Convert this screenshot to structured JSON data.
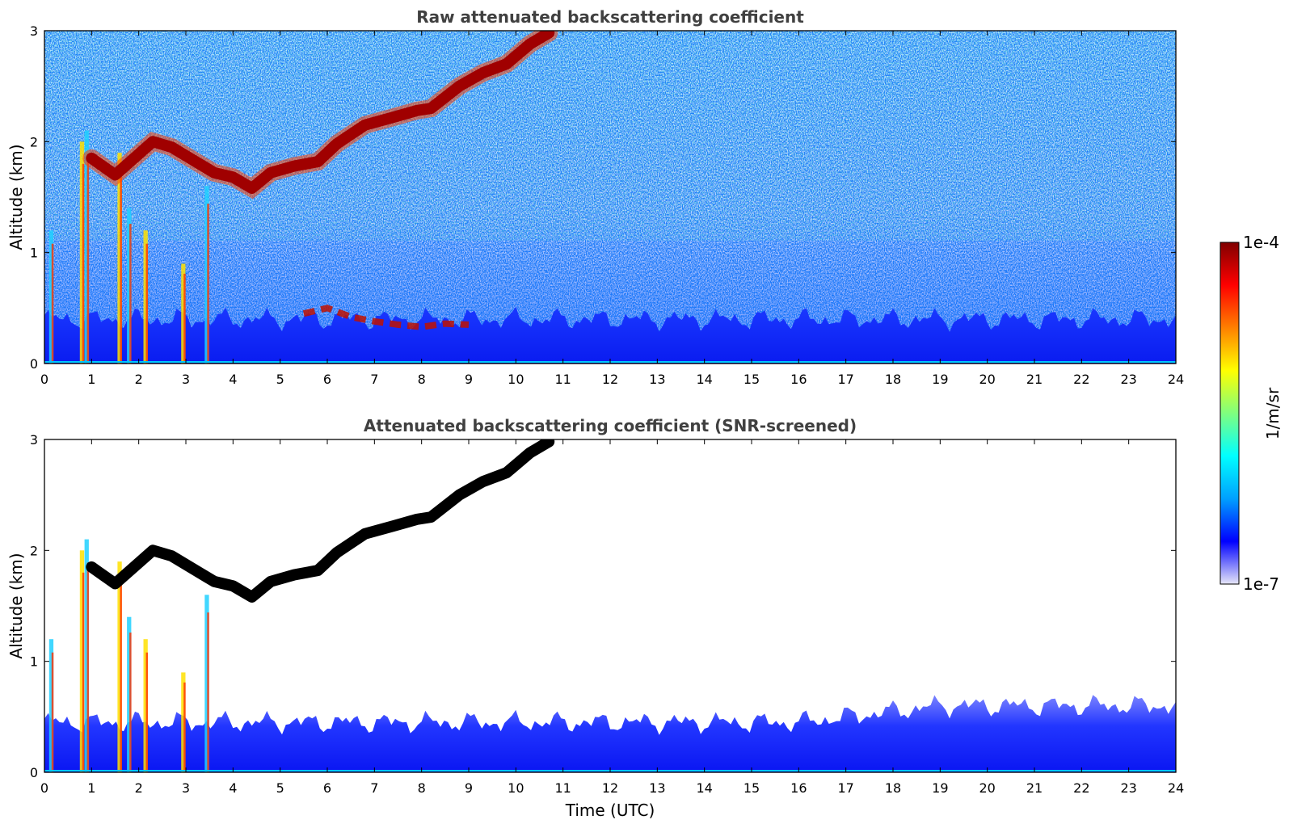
{
  "chart_data": [
    {
      "type": "heatmap",
      "title": "Raw attenuated backscattering coefficient",
      "xlabel": "",
      "ylabel": "Altitude (km)",
      "xlim": [
        0,
        24
      ],
      "ylim": [
        0,
        3
      ],
      "x_ticks": [
        "0",
        "1",
        "2",
        "3",
        "4",
        "5",
        "6",
        "7",
        "8",
        "9",
        "10",
        "11",
        "12",
        "13",
        "14",
        "15",
        "16",
        "17",
        "18",
        "19",
        "20",
        "21",
        "22",
        "23",
        "24"
      ],
      "y_ticks": [
        "0",
        "1",
        "2",
        "3"
      ],
      "features": {
        "boundary_layer_top_km": 0.4,
        "cloud_layer": {
          "x": [
            1.0,
            1.5,
            2.3,
            2.7,
            3.6,
            4.0,
            4.4,
            4.8,
            5.3,
            5.8,
            6.2,
            6.8,
            7.4,
            7.9,
            8.2,
            8.8,
            9.3,
            9.8,
            10.3,
            10.7
          ],
          "y": [
            1.85,
            1.7,
            2.0,
            1.95,
            1.72,
            1.68,
            1.58,
            1.72,
            1.78,
            1.82,
            1.98,
            2.15,
            2.22,
            2.28,
            2.3,
            2.5,
            2.62,
            2.7,
            2.88,
            2.98
          ]
        },
        "aerosol_layer": {
          "x": [
            5.5,
            6.0,
            6.5,
            7.0,
            7.5,
            8.0,
            8.5,
            9.0
          ],
          "y": [
            0.45,
            0.5,
            0.42,
            0.38,
            0.35,
            0.33,
            0.36,
            0.35
          ]
        }
      }
    },
    {
      "type": "heatmap",
      "title": "Attenuated backscattering coefficient (SNR-screened)",
      "xlabel": "Time (UTC)",
      "ylabel": "Altitude (km)",
      "xlim": [
        0,
        24
      ],
      "ylim": [
        0,
        3
      ],
      "x_ticks": [
        "0",
        "1",
        "2",
        "3",
        "4",
        "5",
        "6",
        "7",
        "8",
        "9",
        "10",
        "11",
        "12",
        "13",
        "14",
        "15",
        "16",
        "17",
        "18",
        "19",
        "20",
        "21",
        "22",
        "23",
        "24"
      ],
      "y_ticks": [
        "0",
        "1",
        "2",
        "3"
      ],
      "features": {
        "boundary_layer_top_km": 0.45,
        "cloud_layer": {
          "x": [
            1.0,
            1.5,
            2.3,
            2.7,
            3.6,
            4.0,
            4.4,
            4.8,
            5.3,
            5.8,
            6.2,
            6.8,
            7.4,
            7.9,
            8.2,
            8.8,
            9.3,
            9.8,
            10.3,
            10.7
          ],
          "y": [
            1.85,
            1.7,
            2.0,
            1.95,
            1.72,
            1.68,
            1.58,
            1.72,
            1.78,
            1.82,
            1.98,
            2.15,
            2.22,
            2.28,
            2.3,
            2.5,
            2.62,
            2.7,
            2.88,
            2.98
          ]
        },
        "cloud_color": "#000000"
      }
    }
  ],
  "colorbar": {
    "label": "1/m/sr",
    "max_label": "1e-4",
    "min_label": "1e-7",
    "colormap": "jet",
    "colors": [
      "#e6e6f8",
      "#0000ff",
      "#00a0ff",
      "#00ffff",
      "#7fff7f",
      "#ffff00",
      "#ff8000",
      "#ff0000",
      "#800000"
    ]
  }
}
